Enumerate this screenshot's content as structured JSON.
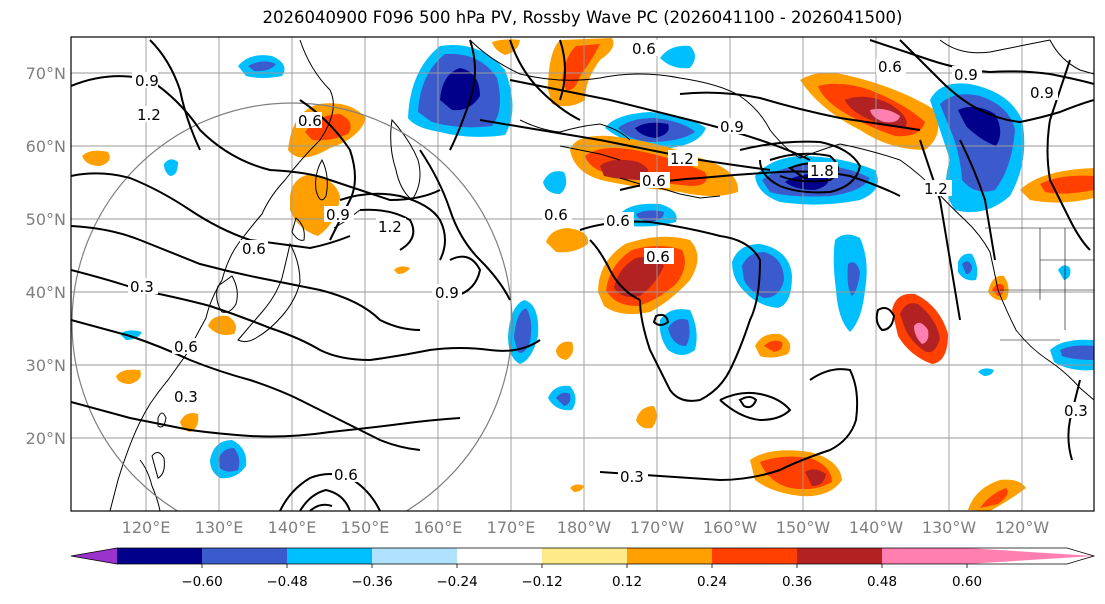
{
  "title": "2026040900 F096 500 hPa PV, Rossby Wave PC (2026041100 - 2026041500)",
  "lat_labels": [
    "70°N",
    "60°N",
    "50°N",
    "40°N",
    "30°N",
    "20°N"
  ],
  "lon_labels": [
    "120°E",
    "130°E",
    "140°E",
    "150°E",
    "160°E",
    "170°E",
    "180°W",
    "170°W",
    "160°W",
    "150°W",
    "140°W",
    "130°W",
    "120°W"
  ],
  "contour_labels": [
    "0.9",
    "1.2",
    "0.6",
    "0.3",
    "0.6",
    "0.9",
    "1.2",
    "0.9",
    "0.6",
    "0.3",
    "0.6",
    "0.6",
    "0.9",
    "1.2",
    "0.6",
    "0.9",
    "0.6",
    "0.9",
    "1.2",
    "1.8",
    "0.6",
    "0.6",
    "0.3",
    "0.6",
    "0.3"
  ],
  "colorbar": {
    "ticks": [
      "−0.60",
      "−0.48",
      "−0.36",
      "−0.24",
      "−0.12",
      "0.12",
      "0.24",
      "0.36",
      "0.48",
      "0.60"
    ],
    "colors": {
      "below": "#9933cc",
      "b1": "#00008b",
      "b2": "#3b5bcc",
      "b3": "#00bfff",
      "b4": "#b0e2ff",
      "b5": "#ffffff",
      "b6": "#ffea8a",
      "b7": "#ffa000",
      "b8": "#ff4000",
      "b9": "#b22222",
      "above": "#ff80b0"
    }
  }
}
